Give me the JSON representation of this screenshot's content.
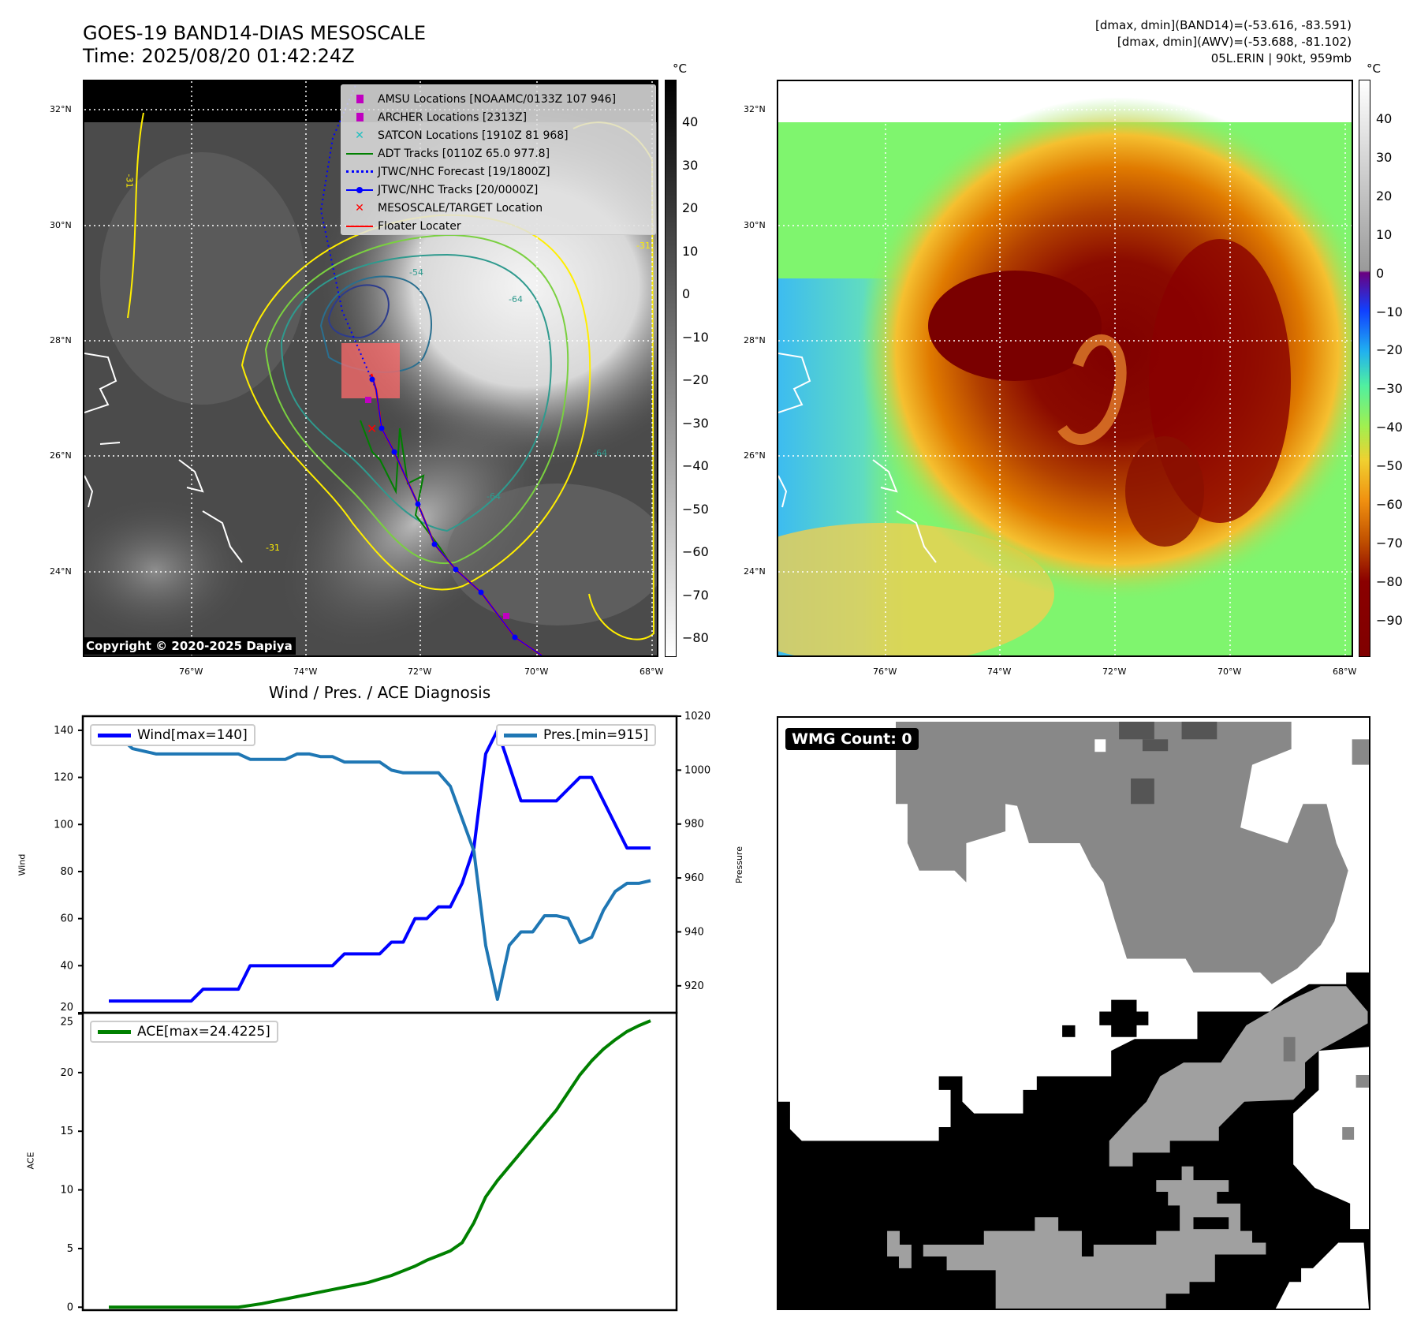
{
  "header": {
    "title_line1": "GOES-19 BAND14-DIAS MESOSCALE",
    "title_line2": "Time: 2025/08/20 01:42:24Z",
    "info_line1": "[dmax, dmin](BAND14)=(-53.616, -83.591)",
    "info_line2": "[dmax, dmin](AWV)=(-53.688, -81.102)",
    "info_line3": "05L.ERIN | 90kt, 959mb"
  },
  "maps": {
    "lat_labels": [
      "32°N",
      "30°N",
      "28°N",
      "26°N",
      "24°N"
    ],
    "lon_labels": [
      "76°W",
      "74°W",
      "72°W",
      "70°W",
      "68°W"
    ],
    "unit": "°C",
    "cbar1_ticks": [
      "40",
      "30",
      "20",
      "10",
      "0",
      "−10",
      "−20",
      "−30",
      "−40",
      "−50",
      "−60",
      "−70",
      "−80"
    ],
    "cbar2_ticks": [
      "40",
      "30",
      "20",
      "10",
      "0",
      "−10",
      "−20",
      "−30",
      "−40",
      "−50",
      "−60",
      "−70",
      "−80",
      "−90"
    ],
    "contour_labels": [
      "-31",
      "-54",
      "-64",
      "-64",
      "-31",
      "-31",
      "-64"
    ],
    "copyright": "Copyright © 2020-2025 Dapiya",
    "legend": [
      {
        "label": "AMSU Locations [NOAAMC/0133Z 107 946]",
        "symbol": "square",
        "color": "#c000c0"
      },
      {
        "label": "ARCHER Locations [2313Z]",
        "symbol": "square",
        "color": "#c000c0"
      },
      {
        "label": "SATCON Locations [1910Z 81 968]",
        "symbol": "x",
        "color": "#20c0c0"
      },
      {
        "label": "ADT Tracks [0110Z 65.0 977.8]",
        "symbol": "line",
        "color": "#008000"
      },
      {
        "label": "JTWC/NHC Forecast [19/1800Z]",
        "symbol": "dotted",
        "color": "#0000ff"
      },
      {
        "label": "JTWC/NHC Tracks [20/0000Z]",
        "symbol": "line-dot",
        "color": "#0000ff"
      },
      {
        "label": "MESOSCALE/TARGET Location",
        "symbol": "x",
        "color": "#ff0000"
      },
      {
        "label": "Floater Locater",
        "symbol": "line",
        "color": "#ff0000"
      }
    ]
  },
  "wmg": {
    "label": "WMG Count: 0"
  },
  "chart_data": [
    {
      "type": "line",
      "title": "Wind / Pres. / ACE Diagnosis",
      "ylabel": "Wind",
      "y2label": "Pressure",
      "ylim": [
        20,
        146
      ],
      "y2lim": [
        910,
        1020
      ],
      "yticks": [
        "20",
        "40",
        "60",
        "80",
        "100",
        "120",
        "140"
      ],
      "y2ticks": [
        "920",
        "940",
        "960",
        "980",
        "1000",
        "1020"
      ],
      "series": [
        {
          "name": "Wind[max=140]",
          "color": "#0000ff",
          "axis": "left",
          "values": [
            25,
            25,
            25,
            25,
            25,
            25,
            25,
            25,
            30,
            30,
            30,
            30,
            40,
            40,
            40,
            40,
            40,
            40,
            40,
            40,
            45,
            45,
            45,
            45,
            50,
            50,
            60,
            60,
            65,
            65,
            75,
            90,
            130,
            140,
            125,
            110,
            110,
            110,
            110,
            115,
            120,
            120,
            110,
            100,
            90,
            90,
            90
          ]
        },
        {
          "name": "Pres.[min=915]",
          "color": "#1f77b4",
          "axis": "right",
          "values": [
            1012,
            1012,
            1008,
            1007,
            1006,
            1006,
            1006,
            1006,
            1006,
            1006,
            1006,
            1006,
            1004,
            1004,
            1004,
            1004,
            1006,
            1006,
            1005,
            1005,
            1003,
            1003,
            1003,
            1003,
            1000,
            999,
            999,
            999,
            999,
            994,
            982,
            970,
            935,
            915,
            935,
            940,
            940,
            946,
            946,
            945,
            936,
            938,
            948,
            955,
            958,
            958,
            959
          ]
        }
      ]
    },
    {
      "type": "line",
      "ylabel": "ACE",
      "ylim": [
        -0.25,
        25.1
      ],
      "yticks": [
        "0",
        "5",
        "10",
        "15",
        "20",
        "25"
      ],
      "series": [
        {
          "name": "ACE[max=24.4225]",
          "color": "#008000",
          "values": [
            0,
            0,
            0,
            0,
            0,
            0,
            0,
            0,
            0,
            0,
            0,
            0,
            0.15,
            0.3,
            0.5,
            0.7,
            0.9,
            1.1,
            1.3,
            1.5,
            1.7,
            1.9,
            2.1,
            2.4,
            2.7,
            3.1,
            3.5,
            4.0,
            4.4,
            4.8,
            5.5,
            7.2,
            9.4,
            10.8,
            12.0,
            13.2,
            14.4,
            15.6,
            16.8,
            18.3,
            19.8,
            21.0,
            22.0,
            22.8,
            23.5,
            24.0,
            24.42
          ]
        }
      ]
    }
  ]
}
